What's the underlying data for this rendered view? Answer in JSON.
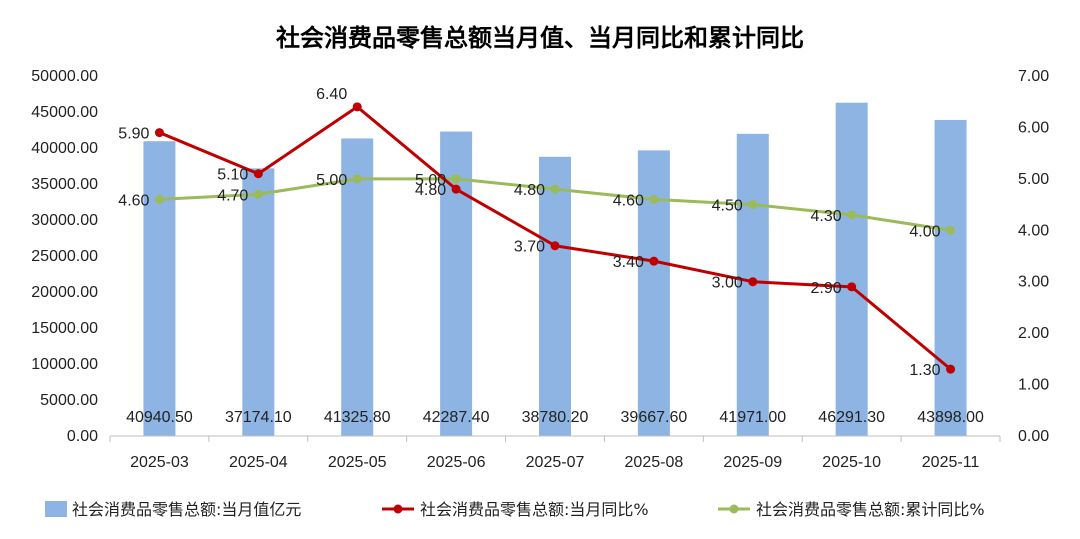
{
  "chart_data": {
    "type": "bar",
    "title": "社会消费品零售总额当月值、当月同比和累计同比",
    "categories": [
      "2025-03",
      "2025-04",
      "2025-05",
      "2025-06",
      "2025-07",
      "2025-08",
      "2025-09",
      "2025-10",
      "2025-11"
    ],
    "y_left": {
      "min": 0,
      "max": 50000,
      "step": 5000,
      "tick_labels": [
        "0.00",
        "5000.00",
        "10000.00",
        "15000.00",
        "20000.00",
        "25000.00",
        "30000.00",
        "35000.00",
        "40000.00",
        "45000.00",
        "50000.00"
      ]
    },
    "y_right": {
      "min": 0,
      "max": 7,
      "step": 1,
      "tick_labels": [
        "0.00",
        "1.00",
        "2.00",
        "3.00",
        "4.00",
        "5.00",
        "6.00",
        "7.00"
      ]
    },
    "grid": false,
    "legend_position": "bottom",
    "series": [
      {
        "name": "社会消费品零售总额:当月值亿元",
        "type": "bar",
        "axis": "left",
        "color": "#8DB4E2",
        "values": [
          40940.5,
          37174.1,
          41325.8,
          42287.4,
          38780.2,
          39667.6,
          41971.0,
          46291.3,
          43898.0
        ],
        "labels": [
          "40940.50",
          "37174.10",
          "41325.80",
          "42287.40",
          "38780.20",
          "39667.60",
          "41971.00",
          "46291.30",
          "43898.00"
        ]
      },
      {
        "name": "社会消费品零售总额:当月同比%",
        "type": "line",
        "axis": "right",
        "color": "#C00000",
        "values": [
          5.9,
          5.1,
          6.4,
          4.8,
          3.7,
          3.4,
          3.0,
          2.9,
          1.3
        ],
        "labels": [
          "5.90",
          "5.10",
          "6.40",
          "4.80",
          "3.70",
          "3.40",
          "3.00",
          "2.90",
          "1.30"
        ]
      },
      {
        "name": "社会消费品零售总额:累计同比%",
        "type": "line",
        "axis": "right",
        "color": "#9BBB59",
        "values": [
          4.6,
          4.7,
          5.0,
          5.0,
          4.8,
          4.6,
          4.5,
          4.3,
          4.0
        ],
        "labels": [
          "4.60",
          "4.70",
          "5.00",
          "5.00",
          "4.80",
          "4.60",
          "4.50",
          "4.30",
          "4.00"
        ]
      }
    ]
  }
}
